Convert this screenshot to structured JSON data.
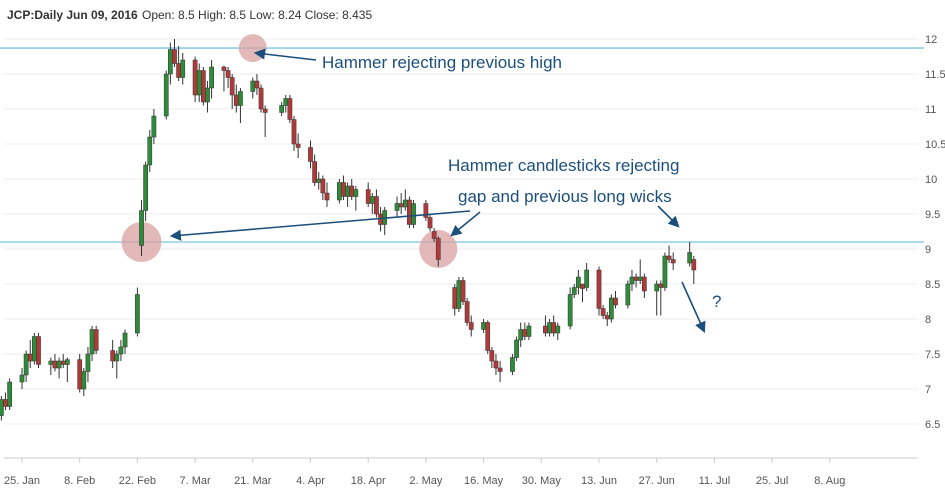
{
  "header": {
    "symbol_label": "JCP:Daily Jun 09, 2016",
    "ohlc_text": "Open: 8.5 High: 8.5 Low: 8.24 Close: 8.435"
  },
  "colors": {
    "up": "#2e8b3a",
    "down": "#b03a3a",
    "level_line": "#8fcde8",
    "annotation": "#1b4f7c",
    "circle": "#d9a0a0",
    "grid": "#eeeeee"
  },
  "annotations": {
    "hammer_high": "Hammer rejecting previous high",
    "hammer_gap_line1": "Hammer candlesticks rejecting",
    "hammer_gap_line2": "gap and previous long wicks",
    "question": "?"
  },
  "chart_data": {
    "type": "candlestick",
    "ylim": [
      6.2,
      12.1
    ],
    "y_ticks": [
      "12",
      "11.5",
      "11",
      "10.5",
      "10",
      "9.5",
      "9",
      "8.5",
      "8",
      "7.5",
      "7",
      "6.5"
    ],
    "x_ticks": [
      "25. Jan",
      "8. Feb",
      "22. Feb",
      "7. Mar",
      "21. Mar",
      "4. Apr",
      "18. Apr",
      "2. May",
      "16. May",
      "30. May",
      "13. Jun",
      "27. Jun",
      "11. Jul",
      "25. Jul",
      "8. Aug"
    ],
    "horizontal_levels": [
      11.87,
      9.1
    ],
    "candles": [
      {
        "date": "2016-01-19",
        "o": 6.7,
        "h": 6.8,
        "l": 6.55,
        "c": 6.62
      },
      {
        "date": "2016-01-20",
        "o": 6.62,
        "h": 6.9,
        "l": 6.55,
        "c": 6.85
      },
      {
        "date": "2016-01-21",
        "o": 6.85,
        "h": 6.95,
        "l": 6.7,
        "c": 6.75
      },
      {
        "date": "2016-01-22",
        "o": 6.75,
        "h": 7.15,
        "l": 6.7,
        "c": 7.1
      },
      {
        "date": "2016-01-25",
        "o": 7.1,
        "h": 7.3,
        "l": 7.0,
        "c": 7.2
      },
      {
        "date": "2016-01-26",
        "o": 7.2,
        "h": 7.55,
        "l": 7.1,
        "c": 7.5
      },
      {
        "date": "2016-01-27",
        "o": 7.5,
        "h": 7.7,
        "l": 7.3,
        "c": 7.4
      },
      {
        "date": "2016-01-28",
        "o": 7.4,
        "h": 7.8,
        "l": 7.35,
        "c": 7.75
      },
      {
        "date": "2016-01-29",
        "o": 7.75,
        "h": 7.8,
        "l": 7.3,
        "c": 7.35
      },
      {
        "date": "2016-02-01",
        "o": 7.35,
        "h": 7.45,
        "l": 7.2,
        "c": 7.4
      },
      {
        "date": "2016-02-02",
        "o": 7.4,
        "h": 7.5,
        "l": 7.25,
        "c": 7.3
      },
      {
        "date": "2016-02-03",
        "o": 7.3,
        "h": 7.45,
        "l": 7.15,
        "c": 7.4
      },
      {
        "date": "2016-02-04",
        "o": 7.4,
        "h": 7.5,
        "l": 7.3,
        "c": 7.35
      },
      {
        "date": "2016-02-05",
        "o": 7.35,
        "h": 7.45,
        "l": 7.1,
        "c": 7.42
      },
      {
        "date": "2016-02-08",
        "o": 7.42,
        "h": 7.5,
        "l": 6.95,
        "c": 7.0
      },
      {
        "date": "2016-02-09",
        "o": 7.0,
        "h": 7.3,
        "l": 6.9,
        "c": 7.25
      },
      {
        "date": "2016-02-10",
        "o": 7.25,
        "h": 7.6,
        "l": 7.1,
        "c": 7.5
      },
      {
        "date": "2016-02-11",
        "o": 7.5,
        "h": 7.9,
        "l": 7.4,
        "c": 7.85
      },
      {
        "date": "2016-02-12",
        "o": 7.85,
        "h": 7.9,
        "l": 7.5,
        "c": 7.55
      },
      {
        "date": "2016-02-16",
        "o": 7.55,
        "h": 7.7,
        "l": 7.3,
        "c": 7.4
      },
      {
        "date": "2016-02-17",
        "o": 7.4,
        "h": 7.55,
        "l": 7.15,
        "c": 7.5
      },
      {
        "date": "2016-02-18",
        "o": 7.5,
        "h": 7.7,
        "l": 7.4,
        "c": 7.6
      },
      {
        "date": "2016-02-19",
        "o": 7.6,
        "h": 7.85,
        "l": 7.5,
        "c": 7.8
      },
      {
        "date": "2016-02-22",
        "o": 7.8,
        "h": 8.45,
        "l": 7.75,
        "c": 8.35
      },
      {
        "date": "2016-02-23",
        "o": 9.05,
        "h": 9.7,
        "l": 8.9,
        "c": 9.55
      },
      {
        "date": "2016-02-24",
        "o": 9.55,
        "h": 10.25,
        "l": 9.4,
        "c": 10.2
      },
      {
        "date": "2016-02-25",
        "o": 10.2,
        "h": 10.7,
        "l": 10.1,
        "c": 10.6
      },
      {
        "date": "2016-02-26",
        "o": 10.6,
        "h": 11.0,
        "l": 10.5,
        "c": 10.9
      },
      {
        "date": "2016-02-29",
        "o": 10.9,
        "h": 11.55,
        "l": 10.85,
        "c": 11.5
      },
      {
        "date": "2016-03-01",
        "o": 11.5,
        "h": 11.95,
        "l": 11.35,
        "c": 11.85
      },
      {
        "date": "2016-03-02",
        "o": 11.85,
        "h": 12.0,
        "l": 11.6,
        "c": 11.65
      },
      {
        "date": "2016-03-03",
        "o": 11.65,
        "h": 11.9,
        "l": 11.4,
        "c": 11.45
      },
      {
        "date": "2016-03-04",
        "o": 11.45,
        "h": 11.8,
        "l": 11.35,
        "c": 11.7
      },
      {
        "date": "2016-03-07",
        "o": 11.7,
        "h": 11.75,
        "l": 11.1,
        "c": 11.2
      },
      {
        "date": "2016-03-08",
        "o": 11.2,
        "h": 11.65,
        "l": 11.1,
        "c": 11.55
      },
      {
        "date": "2016-03-09",
        "o": 11.55,
        "h": 11.6,
        "l": 11.05,
        "c": 11.1
      },
      {
        "date": "2016-03-10",
        "o": 11.1,
        "h": 11.4,
        "l": 10.95,
        "c": 11.3
      },
      {
        "date": "2016-03-11",
        "o": 11.3,
        "h": 11.7,
        "l": 11.15,
        "c": 11.6
      },
      {
        "date": "2016-03-14",
        "o": 11.6,
        "h": 11.62,
        "l": 11.25,
        "c": 11.55
      },
      {
        "date": "2016-03-15",
        "o": 11.55,
        "h": 11.6,
        "l": 11.3,
        "c": 11.45
      },
      {
        "date": "2016-03-16",
        "o": 11.45,
        "h": 11.5,
        "l": 11.0,
        "c": 11.2
      },
      {
        "date": "2016-03-17",
        "o": 11.2,
        "h": 11.35,
        "l": 10.95,
        "c": 11.05
      },
      {
        "date": "2016-03-18",
        "o": 11.05,
        "h": 11.3,
        "l": 10.8,
        "c": 11.25
      },
      {
        "date": "2016-03-21",
        "o": 11.25,
        "h": 11.45,
        "l": 11.15,
        "c": 11.4
      },
      {
        "date": "2016-03-22",
        "o": 11.4,
        "h": 11.5,
        "l": 11.2,
        "c": 11.3
      },
      {
        "date": "2016-03-23",
        "o": 11.3,
        "h": 11.35,
        "l": 10.95,
        "c": 11.0
      },
      {
        "date": "2016-03-24",
        "o": 11.0,
        "h": 11.05,
        "l": 10.6,
        "c": 10.95
      },
      {
        "date": "2016-03-28",
        "o": 10.95,
        "h": 11.1,
        "l": 10.9,
        "c": 11.05
      },
      {
        "date": "2016-03-29",
        "o": 11.05,
        "h": 11.2,
        "l": 10.95,
        "c": 11.15
      },
      {
        "date": "2016-03-30",
        "o": 11.15,
        "h": 11.2,
        "l": 10.8,
        "c": 10.85
      },
      {
        "date": "2016-03-31",
        "o": 10.85,
        "h": 10.9,
        "l": 10.4,
        "c": 10.5
      },
      {
        "date": "2016-04-01",
        "o": 10.5,
        "h": 10.65,
        "l": 10.3,
        "c": 10.45
      },
      {
        "date": "2016-04-04",
        "o": 10.45,
        "h": 10.55,
        "l": 10.15,
        "c": 10.25
      },
      {
        "date": "2016-04-05",
        "o": 10.25,
        "h": 10.35,
        "l": 9.9,
        "c": 9.95
      },
      {
        "date": "2016-04-06",
        "o": 9.95,
        "h": 10.1,
        "l": 9.85,
        "c": 10.0
      },
      {
        "date": "2016-04-07",
        "o": 10.0,
        "h": 10.05,
        "l": 9.7,
        "c": 9.8
      },
      {
        "date": "2016-04-08",
        "o": 9.8,
        "h": 9.95,
        "l": 9.6,
        "c": 9.7
      },
      {
        "date": "2016-04-11",
        "o": 9.7,
        "h": 10.0,
        "l": 9.65,
        "c": 9.95
      },
      {
        "date": "2016-04-12",
        "o": 9.95,
        "h": 10.05,
        "l": 9.7,
        "c": 9.75
      },
      {
        "date": "2016-04-13",
        "o": 9.75,
        "h": 9.95,
        "l": 9.6,
        "c": 9.9
      },
      {
        "date": "2016-04-14",
        "o": 9.9,
        "h": 10.0,
        "l": 9.7,
        "c": 9.75
      },
      {
        "date": "2016-04-15",
        "o": 9.75,
        "h": 9.9,
        "l": 9.55,
        "c": 9.85
      },
      {
        "date": "2016-04-18",
        "o": 9.85,
        "h": 9.95,
        "l": 9.6,
        "c": 9.65
      },
      {
        "date": "2016-04-19",
        "o": 9.65,
        "h": 9.8,
        "l": 9.5,
        "c": 9.75
      },
      {
        "date": "2016-04-20",
        "o": 9.75,
        "h": 9.85,
        "l": 9.45,
        "c": 9.5
      },
      {
        "date": "2016-04-21",
        "o": 9.5,
        "h": 9.6,
        "l": 9.25,
        "c": 9.35
      },
      {
        "date": "2016-04-22",
        "o": 9.35,
        "h": 9.6,
        "l": 9.2,
        "c": 9.55
      },
      {
        "date": "2016-04-25",
        "o": 9.55,
        "h": 9.75,
        "l": 9.45,
        "c": 9.65
      },
      {
        "date": "2016-04-26",
        "o": 9.65,
        "h": 9.8,
        "l": 9.5,
        "c": 9.6
      },
      {
        "date": "2016-04-27",
        "o": 9.6,
        "h": 9.85,
        "l": 9.55,
        "c": 9.7
      },
      {
        "date": "2016-04-28",
        "o": 9.7,
        "h": 9.75,
        "l": 9.3,
        "c": 9.35
      },
      {
        "date": "2016-04-29",
        "o": 9.35,
        "h": 9.7,
        "l": 9.3,
        "c": 9.65
      },
      {
        "date": "2016-05-02",
        "o": 9.65,
        "h": 9.7,
        "l": 9.4,
        "c": 9.45
      },
      {
        "date": "2016-05-03",
        "o": 9.45,
        "h": 9.5,
        "l": 9.25,
        "c": 9.3
      },
      {
        "date": "2016-05-04",
        "o": 9.25,
        "h": 9.3,
        "l": 9.1,
        "c": 9.15
      },
      {
        "date": "2016-05-05",
        "o": 9.15,
        "h": 9.18,
        "l": 8.75,
        "c": 8.85
      },
      {
        "date": "2016-05-09",
        "o": 8.45,
        "h": 8.5,
        "l": 8.05,
        "c": 8.15
      },
      {
        "date": "2016-05-10",
        "o": 8.15,
        "h": 8.6,
        "l": 8.1,
        "c": 8.55
      },
      {
        "date": "2016-05-11",
        "o": 8.55,
        "h": 8.6,
        "l": 8.2,
        "c": 8.25
      },
      {
        "date": "2016-05-12",
        "o": 8.25,
        "h": 8.3,
        "l": 7.9,
        "c": 7.95
      },
      {
        "date": "2016-05-13",
        "o": 7.95,
        "h": 8.05,
        "l": 7.75,
        "c": 7.85
      },
      {
        "date": "2016-05-16",
        "o": 7.85,
        "h": 8.0,
        "l": 7.8,
        "c": 7.95
      },
      {
        "date": "2016-05-17",
        "o": 7.95,
        "h": 7.98,
        "l": 7.5,
        "c": 7.55
      },
      {
        "date": "2016-05-18",
        "o": 7.55,
        "h": 7.6,
        "l": 7.3,
        "c": 7.4
      },
      {
        "date": "2016-05-19",
        "o": 7.4,
        "h": 7.5,
        "l": 7.2,
        "c": 7.3
      },
      {
        "date": "2016-05-20",
        "o": 7.3,
        "h": 7.4,
        "l": 7.1,
        "c": 7.25
      },
      {
        "date": "2016-05-23",
        "o": 7.25,
        "h": 7.5,
        "l": 7.2,
        "c": 7.45
      },
      {
        "date": "2016-05-24",
        "o": 7.45,
        "h": 7.75,
        "l": 7.4,
        "c": 7.7
      },
      {
        "date": "2016-05-25",
        "o": 7.7,
        "h": 7.95,
        "l": 7.6,
        "c": 7.85
      },
      {
        "date": "2016-05-26",
        "o": 7.85,
        "h": 7.95,
        "l": 7.7,
        "c": 7.75
      },
      {
        "date": "2016-05-27",
        "o": 7.75,
        "h": 7.95,
        "l": 7.7,
        "c": 7.9
      },
      {
        "date": "2016-05-31",
        "o": 7.9,
        "h": 8.05,
        "l": 7.75,
        "c": 7.8
      },
      {
        "date": "2016-06-01",
        "o": 7.8,
        "h": 8.0,
        "l": 7.75,
        "c": 7.95
      },
      {
        "date": "2016-06-02",
        "o": 7.95,
        "h": 8.05,
        "l": 7.75,
        "c": 7.8
      },
      {
        "date": "2016-06-03",
        "o": 7.8,
        "h": 7.95,
        "l": 7.7,
        "c": 7.9
      },
      {
        "date": "2016-06-06",
        "o": 7.9,
        "h": 8.45,
        "l": 7.85,
        "c": 8.35
      },
      {
        "date": "2016-06-07",
        "o": 8.35,
        "h": 8.5,
        "l": 8.3,
        "c": 8.45
      },
      {
        "date": "2016-06-08",
        "o": 8.45,
        "h": 8.7,
        "l": 8.35,
        "c": 8.6
      },
      {
        "date": "2016-06-09",
        "o": 8.5,
        "h": 8.5,
        "l": 8.24,
        "c": 8.435
      },
      {
        "date": "2016-06-10",
        "o": 8.45,
        "h": 8.8,
        "l": 8.4,
        "c": 8.7
      },
      {
        "date": "2016-06-13",
        "o": 8.7,
        "h": 8.75,
        "l": 8.05,
        "c": 8.15
      },
      {
        "date": "2016-06-14",
        "o": 8.15,
        "h": 8.2,
        "l": 8.0,
        "c": 8.05
      },
      {
        "date": "2016-06-15",
        "o": 8.05,
        "h": 8.1,
        "l": 7.9,
        "c": 8.0
      },
      {
        "date": "2016-06-16",
        "o": 8.0,
        "h": 8.35,
        "l": 7.95,
        "c": 8.3
      },
      {
        "date": "2016-06-17",
        "o": 8.3,
        "h": 8.4,
        "l": 8.15,
        "c": 8.2
      },
      {
        "date": "2016-06-20",
        "o": 8.2,
        "h": 8.55,
        "l": 8.15,
        "c": 8.5
      },
      {
        "date": "2016-06-21",
        "o": 8.5,
        "h": 8.7,
        "l": 8.4,
        "c": 8.6
      },
      {
        "date": "2016-06-22",
        "o": 8.6,
        "h": 8.65,
        "l": 8.45,
        "c": 8.55
      },
      {
        "date": "2016-06-23",
        "o": 8.55,
        "h": 8.85,
        "l": 8.5,
        "c": 8.6
      },
      {
        "date": "2016-06-24",
        "o": 8.6,
        "h": 8.65,
        "l": 8.3,
        "c": 8.4
      },
      {
        "date": "2016-06-27",
        "o": 8.4,
        "h": 8.55,
        "l": 8.05,
        "c": 8.5
      },
      {
        "date": "2016-06-28",
        "o": 8.5,
        "h": 8.55,
        "l": 8.05,
        "c": 8.45
      },
      {
        "date": "2016-06-29",
        "o": 8.45,
        "h": 8.95,
        "l": 8.4,
        "c": 8.9
      },
      {
        "date": "2016-06-30",
        "o": 8.9,
        "h": 9.05,
        "l": 8.8,
        "c": 8.85
      },
      {
        "date": "2016-07-01",
        "o": 8.85,
        "h": 8.95,
        "l": 8.7,
        "c": 8.8
      },
      {
        "date": "2016-07-05",
        "o": 8.8,
        "h": 9.1,
        "l": 8.75,
        "c": 8.95
      },
      {
        "date": "2016-07-06",
        "o": 8.85,
        "h": 8.9,
        "l": 8.5,
        "c": 8.7
      }
    ]
  }
}
